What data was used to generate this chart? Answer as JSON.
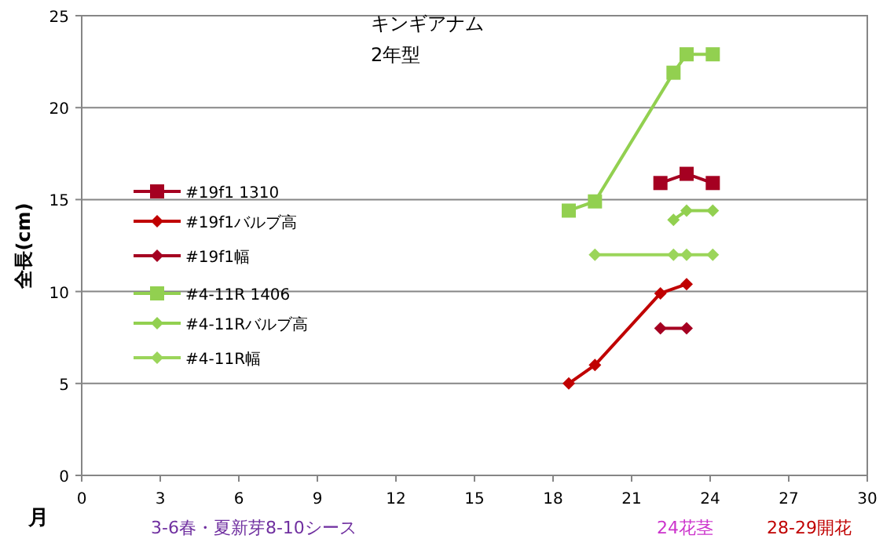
{
  "chart_data": {
    "type": "line",
    "title": "キンギアナム",
    "subtitle": "2年型",
    "xlabel": "月",
    "ylabel": "全長(cm)",
    "xlim": [
      0,
      30
    ],
    "xticks": [
      0,
      3,
      6,
      9,
      12,
      15,
      18,
      21,
      24,
      27,
      30
    ],
    "ylim": [
      0,
      25
    ],
    "yticks": [
      0,
      5,
      10,
      15,
      20,
      25
    ],
    "grid": "y",
    "legend": "left",
    "annotations": [
      "3-6春・夏新芽8-10シース",
      "24花茎",
      "28-29開花"
    ],
    "series": [
      {
        "name": "#19f1 1310",
        "color": "#a50021",
        "marker": "square",
        "x": [
          22.1,
          23.1,
          24.1
        ],
        "values": [
          15.9,
          16.4,
          15.9
        ]
      },
      {
        "name": "#19f1バルブ高",
        "color": "#c00000",
        "marker": "diamond",
        "x": [
          18.6,
          19.6,
          22.1,
          23.1
        ],
        "values": [
          5.0,
          6.0,
          9.9,
          10.4
        ]
      },
      {
        "name": "#19f1幅",
        "color": "#a50021",
        "marker": "diamond",
        "x": [
          22.1,
          23.1
        ],
        "values": [
          8.0,
          8.0
        ]
      },
      {
        "name": "#4-11R 1406",
        "color": "#92d050",
        "marker": "square",
        "x": [
          18.6,
          19.6,
          22.6,
          23.1,
          24.1
        ],
        "values": [
          14.4,
          14.9,
          21.9,
          22.9,
          22.9
        ]
      },
      {
        "name": "#4-11Rバルブ高",
        "color": "#92d050",
        "marker": "diamond",
        "x": [
          22.6,
          23.1,
          24.1
        ],
        "values": [
          13.9,
          14.4,
          14.4
        ]
      },
      {
        "name": "#4-11R幅",
        "color": "#9bd55a",
        "marker": "diamond",
        "x": [
          19.6,
          22.6,
          23.1,
          24.1
        ],
        "values": [
          12.0,
          12.0,
          12.0,
          12.0
        ]
      }
    ]
  }
}
